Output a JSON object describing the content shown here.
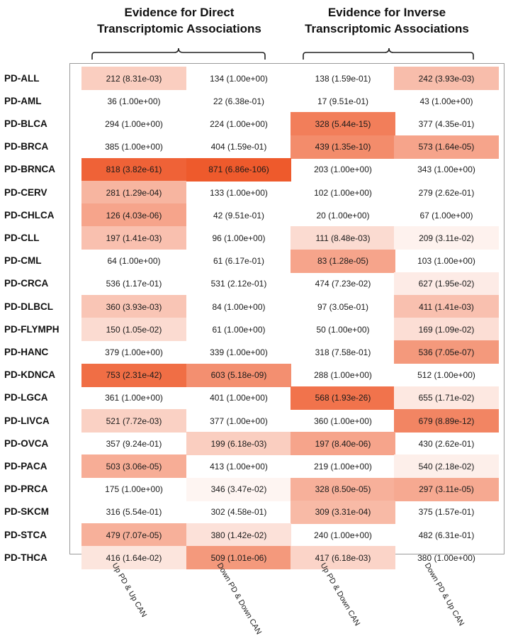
{
  "chart_data": {
    "type": "heatmap",
    "group_titles": [
      {
        "line1": "Evidence for Direct",
        "line2": "Transcriptomic  Associations"
      },
      {
        "line1": "Evidence for Inverse",
        "line2": "Transcriptomic Associations"
      }
    ],
    "columns": [
      "Up PD & Up CAN",
      "Down PD & Down CAN",
      "Up PD & Down CAN",
      "Down PD & Up CAN"
    ],
    "rows": [
      {
        "label": "PD-ALL",
        "cells": [
          {
            "text": "212 (8.31e-03)",
            "level": 0.3
          },
          {
            "text": "134 (1.00e+00)",
            "level": 0
          },
          {
            "text": "138 (1.59e-01)",
            "level": 0
          },
          {
            "text": "242 (3.93e-03)",
            "level": 0.4
          }
        ]
      },
      {
        "label": "PD-AML",
        "cells": [
          {
            "text": "36 (1.00e+00)",
            "level": 0
          },
          {
            "text": "22 (6.38e-01)",
            "level": 0
          },
          {
            "text": "17 (9.51e-01)",
            "level": 0
          },
          {
            "text": "43 (1.00e+00)",
            "level": 0
          }
        ]
      },
      {
        "label": "PD-BLCA",
        "cells": [
          {
            "text": "294 (1.00e+00)",
            "level": 0
          },
          {
            "text": "224 (1.00e+00)",
            "level": 0
          },
          {
            "text": "328 (5.44e-15)",
            "level": 0.78
          },
          {
            "text": "377 (4.35e-01)",
            "level": 0
          }
        ]
      },
      {
        "label": "PD-BRCA",
        "cells": [
          {
            "text": "385 (1.00e+00)",
            "level": 0
          },
          {
            "text": "404 (1.59e-01)",
            "level": 0
          },
          {
            "text": "439 (1.35e-10)",
            "level": 0.7
          },
          {
            "text": "573 (1.64e-05)",
            "level": 0.55
          }
        ]
      },
      {
        "label": "PD-BRNCA",
        "cells": [
          {
            "text": "818 (3.82e-61)",
            "level": 0.95
          },
          {
            "text": "871 (6.86e-106)",
            "level": 1.0
          },
          {
            "text": "203 (1.00e+00)",
            "level": 0
          },
          {
            "text": "343 (1.00e+00)",
            "level": 0
          }
        ]
      },
      {
        "label": "PD-CERV",
        "cells": [
          {
            "text": "281 (1.29e-04)",
            "level": 0.45
          },
          {
            "text": "133 (1.00e+00)",
            "level": 0
          },
          {
            "text": "102 (1.00e+00)",
            "level": 0
          },
          {
            "text": "279 (2.62e-01)",
            "level": 0
          }
        ]
      },
      {
        "label": "PD-CHLCA",
        "cells": [
          {
            "text": "126 (4.03e-06)",
            "level": 0.55
          },
          {
            "text": "42 (9.51e-01)",
            "level": 0
          },
          {
            "text": "20 (1.00e+00)",
            "level": 0
          },
          {
            "text": "67 (1.00e+00)",
            "level": 0
          }
        ]
      },
      {
        "label": "PD-CLL",
        "cells": [
          {
            "text": "197 (1.41e-03)",
            "level": 0.38
          },
          {
            "text": "96 (1.00e+00)",
            "level": 0
          },
          {
            "text": "111 (8.48e-03)",
            "level": 0.22
          },
          {
            "text": "209 (3.11e-02)",
            "level": 0.08
          }
        ]
      },
      {
        "label": "PD-CML",
        "cells": [
          {
            "text": "64 (1.00e+00)",
            "level": 0
          },
          {
            "text": "61 (6.17e-01)",
            "level": 0
          },
          {
            "text": "83 (1.28e-05)",
            "level": 0.55
          },
          {
            "text": "103 (1.00e+00)",
            "level": 0
          }
        ]
      },
      {
        "label": "PD-CRCA",
        "cells": [
          {
            "text": "536 (1.17e-01)",
            "level": 0
          },
          {
            "text": "531 (2.12e-01)",
            "level": 0
          },
          {
            "text": "474 (7.23e-02)",
            "level": 0
          },
          {
            "text": "627 (1.95e-02)",
            "level": 0.12
          }
        ]
      },
      {
        "label": "PD-DLBCL",
        "cells": [
          {
            "text": "360 (3.93e-03)",
            "level": 0.35
          },
          {
            "text": "84 (1.00e+00)",
            "level": 0
          },
          {
            "text": "97 (3.05e-01)",
            "level": 0
          },
          {
            "text": "411 (1.41e-03)",
            "level": 0.38
          }
        ]
      },
      {
        "label": "PD-FLYMPH",
        "cells": [
          {
            "text": "150 (1.05e-02)",
            "level": 0.22
          },
          {
            "text": "61 (1.00e+00)",
            "level": 0
          },
          {
            "text": "50 (1.00e+00)",
            "level": 0
          },
          {
            "text": "169 (1.09e-02)",
            "level": 0.2
          }
        ]
      },
      {
        "label": "PD-HANC",
        "cells": [
          {
            "text": "379 (1.00e+00)",
            "level": 0
          },
          {
            "text": "339 (1.00e+00)",
            "level": 0
          },
          {
            "text": "318 (7.58e-01)",
            "level": 0
          },
          {
            "text": "536 (7.05e-07)",
            "level": 0.62
          }
        ]
      },
      {
        "label": "PD-KDNCA",
        "cells": [
          {
            "text": "753 (2.31e-42)",
            "level": 0.88
          },
          {
            "text": "603 (5.18e-09)",
            "level": 0.68
          },
          {
            "text": "288 (1.00e+00)",
            "level": 0
          },
          {
            "text": "512 (1.00e+00)",
            "level": 0
          }
        ]
      },
      {
        "label": "PD-LGCA",
        "cells": [
          {
            "text": "361 (1.00e+00)",
            "level": 0
          },
          {
            "text": "401 (1.00e+00)",
            "level": 0
          },
          {
            "text": "568 (1.93e-26)",
            "level": 0.85
          },
          {
            "text": "655 (1.71e-02)",
            "level": 0.14
          }
        ]
      },
      {
        "label": "PD-LIVCA",
        "cells": [
          {
            "text": "521 (7.72e-03)",
            "level": 0.28
          },
          {
            "text": "377 (1.00e+00)",
            "level": 0
          },
          {
            "text": "360 (1.00e+00)",
            "level": 0
          },
          {
            "text": "679 (8.89e-12)",
            "level": 0.74
          }
        ]
      },
      {
        "label": "PD-OVCA",
        "cells": [
          {
            "text": "357 (9.24e-01)",
            "level": 0
          },
          {
            "text": "199 (6.18e-03)",
            "level": 0.3
          },
          {
            "text": "197 (8.40e-06)",
            "level": 0.55
          },
          {
            "text": "430 (2.62e-01)",
            "level": 0
          }
        ]
      },
      {
        "label": "PD-PACA",
        "cells": [
          {
            "text": "503 (3.06e-05)",
            "level": 0.5
          },
          {
            "text": "413 (1.00e+00)",
            "level": 0
          },
          {
            "text": "219 (1.00e+00)",
            "level": 0
          },
          {
            "text": "540 (2.18e-02)",
            "level": 0.1
          }
        ]
      },
      {
        "label": "PD-PRCA",
        "cells": [
          {
            "text": "175 (1.00e+00)",
            "level": 0
          },
          {
            "text": "346 (3.47e-02)",
            "level": 0.06
          },
          {
            "text": "328 (8.50e-05)",
            "level": 0.48
          },
          {
            "text": "297 (3.11e-05)",
            "level": 0.52
          }
        ]
      },
      {
        "label": "PD-SKCM",
        "cells": [
          {
            "text": "316 (5.54e-01)",
            "level": 0
          },
          {
            "text": "302 (4.58e-01)",
            "level": 0
          },
          {
            "text": "309 (3.31e-04)",
            "level": 0.42
          },
          {
            "text": "375 (1.57e-01)",
            "level": 0
          }
        ]
      },
      {
        "label": "PD-STCA",
        "cells": [
          {
            "text": "479 (7.07e-05)",
            "level": 0.48
          },
          {
            "text": "380 (1.42e-02)",
            "level": 0.18
          },
          {
            "text": "240 (1.00e+00)",
            "level": 0
          },
          {
            "text": "482 (6.31e-01)",
            "level": 0
          }
        ]
      },
      {
        "label": "PD-THCA",
        "cells": [
          {
            "text": "416 (1.64e-02)",
            "level": 0.16
          },
          {
            "text": "509 (1.01e-06)",
            "level": 0.62
          },
          {
            "text": "417 (6.18e-03)",
            "level": 0.26
          },
          {
            "text": "380 (1.00e+00)",
            "level": 0
          }
        ]
      }
    ],
    "color_low": "#ffffff",
    "color_high": "#ee5a2c",
    "legend": "none"
  }
}
